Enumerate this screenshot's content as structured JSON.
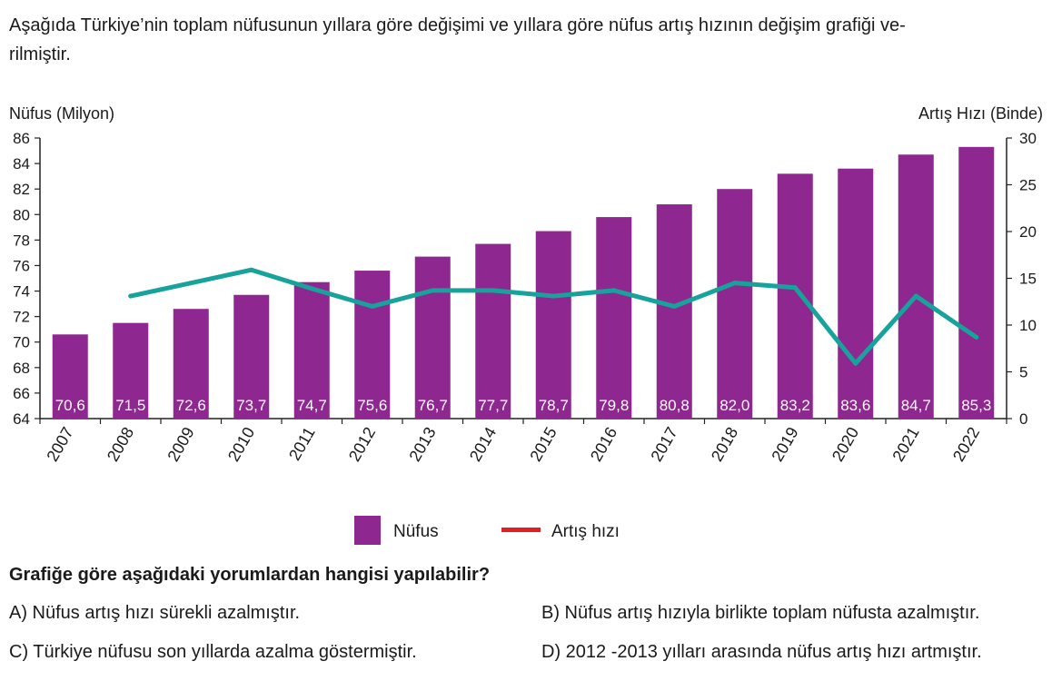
{
  "intro": {
    "line1": "Aşağıda Türkiye’nin toplam nüfusunun yıllara göre değişimi ve yıllara göre nüfus artış hızının değişim grafiği ve-",
    "line2": "rilmiştir."
  },
  "chart_data": {
    "type": "bar",
    "categories": [
      "2007",
      "2008",
      "2009",
      "2010",
      "2011",
      "2012",
      "2013",
      "2014",
      "2015",
      "2016",
      "2017",
      "2018",
      "2019",
      "2020",
      "2021",
      "2022"
    ],
    "series": [
      {
        "name": "Nüfus",
        "type": "bar",
        "axis": "left",
        "color": "#8e278f",
        "values": [
          70.6,
          71.5,
          72.6,
          73.7,
          74.7,
          75.6,
          76.7,
          77.7,
          78.7,
          79.8,
          80.8,
          82.0,
          83.2,
          83.6,
          84.7,
          85.3
        ],
        "labels": [
          "70,6",
          "71,5",
          "72,6",
          "73,7",
          "74,7",
          "75,6",
          "76,7",
          "77,7",
          "78,7",
          "79,8",
          "80,8",
          "82,0",
          "83,2",
          "83,6",
          "84,7",
          "85,3"
        ]
      },
      {
        "name": "Artış hızı",
        "type": "line",
        "axis": "right",
        "color": "#17a29b",
        "legend_color": "#e31e24",
        "values": [
          null,
          13.1,
          14.5,
          15.9,
          13.9,
          12.0,
          13.7,
          13.7,
          13.1,
          13.7,
          12.0,
          14.5,
          14.0,
          5.9,
          13.1,
          8.7
        ]
      }
    ],
    "ylabel_left": "Nüfus (Milyon)",
    "ylabel_right": "Artış Hızı (Binde)",
    "ylim_left": [
      64,
      86
    ],
    "yticks_left": [
      64,
      66,
      68,
      70,
      72,
      74,
      76,
      78,
      80,
      82,
      84,
      86
    ],
    "ylim_right": [
      0,
      30
    ],
    "yticks_right": [
      0,
      5,
      10,
      15,
      20,
      25,
      30
    ],
    "legend_placement": "bottom-center",
    "grid": false
  },
  "question": "Grafiğe göre aşağıdaki yorumlardan hangisi yapılabilir?",
  "options": [
    {
      "text": "A) Nüfus artış hızı sürekli azalmıştır."
    },
    {
      "text": "B) Nüfus artış hızıyla birlikte toplam nüfusta azalmıştır."
    },
    {
      "text": "C) Türkiye nüfusu son yıllarda azalma göstermiştir."
    },
    {
      "text": "D) 2012 -2013 yılları arasında nüfus artış hızı artmıştır."
    }
  ]
}
